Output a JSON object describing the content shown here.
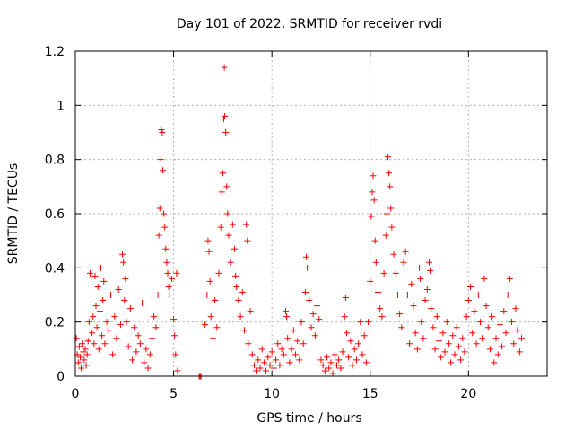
{
  "chart_data": {
    "type": "scatter",
    "title": "Day 101 of 2022, SRMTID for receiver rvdi",
    "xlabel": "GPS time / hours",
    "ylabel": "SRMTID / TECUs",
    "xlim": [
      0,
      24
    ],
    "ylim": [
      0,
      1.2
    ],
    "xticks": [
      0,
      5,
      10,
      15,
      20
    ],
    "xtick_labels": [
      "0",
      "5",
      "10",
      "15",
      "20"
    ],
    "yticks": [
      0,
      0.2,
      0.4,
      0.6,
      0.8,
      1.0,
      1.2
    ],
    "ytick_labels": [
      "0",
      "0.2",
      "0.4",
      "0.6",
      "0.8",
      "1",
      "1.2"
    ],
    "grid": true,
    "marker": "+",
    "color": "#ff0000",
    "series": [
      {
        "name": "SRMTID",
        "points": [
          [
            0.05,
            0.14
          ],
          [
            0.1,
            0.08
          ],
          [
            0.15,
            0.05
          ],
          [
            0.2,
            0.11
          ],
          [
            0.25,
            0.07
          ],
          [
            0.3,
            0.03
          ],
          [
            0.35,
            0.12
          ],
          [
            0.4,
            0.09
          ],
          [
            0.45,
            0.06
          ],
          [
            0.5,
            0.1
          ],
          [
            0.55,
            0.04
          ],
          [
            0.6,
            0.08
          ],
          [
            0.65,
            0.13
          ],
          [
            0.7,
            0.2
          ],
          [
            0.75,
            0.38
          ],
          [
            0.8,
            0.3
          ],
          [
            0.85,
            0.16
          ],
          [
            0.9,
            0.22
          ],
          [
            0.95,
            0.12
          ],
          [
            1.0,
            0.37
          ],
          [
            1.05,
            0.26
          ],
          [
            1.1,
            0.18
          ],
          [
            1.15,
            0.33
          ],
          [
            1.2,
            0.1
          ],
          [
            1.25,
            0.24
          ],
          [
            1.3,
            0.4
          ],
          [
            1.35,
            0.15
          ],
          [
            1.4,
            0.28
          ],
          [
            1.45,
            0.35
          ],
          [
            1.5,
            0.12
          ],
          [
            1.6,
            0.2
          ],
          [
            1.7,
            0.17
          ],
          [
            1.8,
            0.3
          ],
          [
            1.9,
            0.08
          ],
          [
            2.0,
            0.22
          ],
          [
            2.1,
            0.14
          ],
          [
            2.2,
            0.32
          ],
          [
            2.3,
            0.19
          ],
          [
            2.4,
            0.45
          ],
          [
            2.45,
            0.42
          ],
          [
            2.5,
            0.28
          ],
          [
            2.55,
            0.36
          ],
          [
            2.6,
            0.2
          ],
          [
            2.7,
            0.11
          ],
          [
            2.8,
            0.25
          ],
          [
            2.9,
            0.06
          ],
          [
            3.0,
            0.18
          ],
          [
            3.1,
            0.09
          ],
          [
            3.2,
            0.15
          ],
          [
            3.3,
            0.12
          ],
          [
            3.4,
            0.27
          ],
          [
            3.5,
            0.05
          ],
          [
            3.6,
            0.1
          ],
          [
            3.7,
            0.03
          ],
          [
            3.8,
            0.08
          ],
          [
            3.9,
            0.14
          ],
          [
            4.0,
            0.22
          ],
          [
            4.1,
            0.18
          ],
          [
            4.2,
            0.3
          ],
          [
            4.25,
            0.52
          ],
          [
            4.3,
            0.62
          ],
          [
            4.35,
            0.8
          ],
          [
            4.38,
            0.91
          ],
          [
            4.42,
            0.9
          ],
          [
            4.45,
            0.76
          ],
          [
            4.5,
            0.6
          ],
          [
            4.55,
            0.55
          ],
          [
            4.6,
            0.47
          ],
          [
            4.65,
            0.42
          ],
          [
            4.7,
            0.38
          ],
          [
            4.75,
            0.33
          ],
          [
            4.8,
            0.3
          ],
          [
            4.9,
            0.36
          ],
          [
            5.0,
            0.21
          ],
          [
            5.05,
            0.15
          ],
          [
            5.1,
            0.08
          ],
          [
            5.15,
            0.38
          ],
          [
            5.2,
            0.02
          ],
          [
            6.3,
            0.0
          ],
          [
            6.35,
            0.0
          ],
          [
            6.4,
            0.0
          ],
          [
            6.6,
            0.19
          ],
          [
            6.7,
            0.3
          ],
          [
            6.75,
            0.5
          ],
          [
            6.8,
            0.46
          ],
          [
            6.85,
            0.35
          ],
          [
            6.9,
            0.22
          ],
          [
            7.0,
            0.14
          ],
          [
            7.1,
            0.28
          ],
          [
            7.2,
            0.18
          ],
          [
            7.3,
            0.38
          ],
          [
            7.4,
            0.55
          ],
          [
            7.45,
            0.68
          ],
          [
            7.5,
            0.75
          ],
          [
            7.55,
            0.95
          ],
          [
            7.58,
            1.14
          ],
          [
            7.6,
            0.96
          ],
          [
            7.65,
            0.9
          ],
          [
            7.7,
            0.7
          ],
          [
            7.75,
            0.6
          ],
          [
            7.8,
            0.52
          ],
          [
            7.9,
            0.42
          ],
          [
            8.0,
            0.56
          ],
          [
            8.1,
            0.47
          ],
          [
            8.15,
            0.37
          ],
          [
            8.2,
            0.33
          ],
          [
            8.3,
            0.28
          ],
          [
            8.4,
            0.22
          ],
          [
            8.5,
            0.31
          ],
          [
            8.6,
            0.17
          ],
          [
            8.7,
            0.56
          ],
          [
            8.75,
            0.5
          ],
          [
            8.8,
            0.12
          ],
          [
            8.9,
            0.24
          ],
          [
            9.0,
            0.08
          ],
          [
            9.1,
            0.04
          ],
          [
            9.2,
            0.02
          ],
          [
            9.3,
            0.06
          ],
          [
            9.4,
            0.03
          ],
          [
            9.5,
            0.1
          ],
          [
            9.6,
            0.05
          ],
          [
            9.7,
            0.02
          ],
          [
            9.8,
            0.07
          ],
          [
            9.9,
            0.04
          ],
          [
            10.0,
            0.09
          ],
          [
            10.1,
            0.03
          ],
          [
            10.2,
            0.06
          ],
          [
            10.3,
            0.12
          ],
          [
            10.4,
            0.04
          ],
          [
            10.5,
            0.1
          ],
          [
            10.6,
            0.08
          ],
          [
            10.7,
            0.24
          ],
          [
            10.75,
            0.22
          ],
          [
            10.8,
            0.14
          ],
          [
            10.9,
            0.05
          ],
          [
            11.0,
            0.1
          ],
          [
            11.1,
            0.17
          ],
          [
            11.2,
            0.08
          ],
          [
            11.3,
            0.13
          ],
          [
            11.4,
            0.06
          ],
          [
            11.5,
            0.2
          ],
          [
            11.6,
            0.12
          ],
          [
            11.7,
            0.31
          ],
          [
            11.75,
            0.44
          ],
          [
            11.8,
            0.4
          ],
          [
            11.9,
            0.28
          ],
          [
            12.0,
            0.18
          ],
          [
            12.1,
            0.23
          ],
          [
            12.2,
            0.15
          ],
          [
            12.3,
            0.26
          ],
          [
            12.4,
            0.21
          ],
          [
            12.5,
            0.06
          ],
          [
            12.6,
            0.04
          ],
          [
            12.7,
            0.02
          ],
          [
            12.8,
            0.07
          ],
          [
            12.9,
            0.03
          ],
          [
            13.0,
            0.05
          ],
          [
            13.1,
            0.01
          ],
          [
            13.2,
            0.08
          ],
          [
            13.3,
            0.04
          ],
          [
            13.4,
            0.06
          ],
          [
            13.5,
            0.03
          ],
          [
            13.6,
            0.09
          ],
          [
            13.7,
            0.22
          ],
          [
            13.75,
            0.29
          ],
          [
            13.8,
            0.16
          ],
          [
            13.9,
            0.07
          ],
          [
            14.0,
            0.13
          ],
          [
            14.1,
            0.04
          ],
          [
            14.2,
            0.1
          ],
          [
            14.3,
            0.06
          ],
          [
            14.4,
            0.12
          ],
          [
            14.5,
            0.2
          ],
          [
            14.6,
            0.08
          ],
          [
            14.7,
            0.15
          ],
          [
            14.8,
            0.05
          ],
          [
            14.9,
            0.2
          ],
          [
            15.0,
            0.35
          ],
          [
            15.05,
            0.59
          ],
          [
            15.1,
            0.68
          ],
          [
            15.15,
            0.74
          ],
          [
            15.2,
            0.65
          ],
          [
            15.25,
            0.5
          ],
          [
            15.3,
            0.42
          ],
          [
            15.4,
            0.31
          ],
          [
            15.5,
            0.25
          ],
          [
            15.6,
            0.22
          ],
          [
            15.7,
            0.38
          ],
          [
            15.8,
            0.52
          ],
          [
            15.85,
            0.6
          ],
          [
            15.9,
            0.81
          ],
          [
            15.95,
            0.75
          ],
          [
            16.0,
            0.7
          ],
          [
            16.05,
            0.62
          ],
          [
            16.1,
            0.55
          ],
          [
            16.2,
            0.45
          ],
          [
            16.3,
            0.38
          ],
          [
            16.4,
            0.3
          ],
          [
            16.5,
            0.23
          ],
          [
            16.6,
            0.18
          ],
          [
            16.7,
            0.42
          ],
          [
            16.8,
            0.46
          ],
          [
            16.9,
            0.3
          ],
          [
            17.0,
            0.12
          ],
          [
            17.1,
            0.34
          ],
          [
            17.2,
            0.26
          ],
          [
            17.3,
            0.16
          ],
          [
            17.4,
            0.1
          ],
          [
            17.5,
            0.4
          ],
          [
            17.55,
            0.36
          ],
          [
            17.6,
            0.2
          ],
          [
            17.7,
            0.14
          ],
          [
            17.8,
            0.28
          ],
          [
            17.9,
            0.32
          ],
          [
            18.0,
            0.42
          ],
          [
            18.05,
            0.39
          ],
          [
            18.1,
            0.25
          ],
          [
            18.2,
            0.18
          ],
          [
            18.3,
            0.1
          ],
          [
            18.4,
            0.22
          ],
          [
            18.5,
            0.13
          ],
          [
            18.6,
            0.07
          ],
          [
            18.7,
            0.16
          ],
          [
            18.8,
            0.09
          ],
          [
            18.9,
            0.2
          ],
          [
            19.0,
            0.12
          ],
          [
            19.1,
            0.05
          ],
          [
            19.2,
            0.15
          ],
          [
            19.3,
            0.08
          ],
          [
            19.4,
            0.18
          ],
          [
            19.5,
            0.11
          ],
          [
            19.6,
            0.06
          ],
          [
            19.7,
            0.14
          ],
          [
            19.8,
            0.09
          ],
          [
            19.9,
            0.22
          ],
          [
            20.0,
            0.28
          ],
          [
            20.1,
            0.33
          ],
          [
            20.2,
            0.16
          ],
          [
            20.3,
            0.24
          ],
          [
            20.4,
            0.12
          ],
          [
            20.5,
            0.3
          ],
          [
            20.6,
            0.2
          ],
          [
            20.7,
            0.14
          ],
          [
            20.8,
            0.36
          ],
          [
            20.9,
            0.26
          ],
          [
            21.0,
            0.18
          ],
          [
            21.1,
            0.1
          ],
          [
            21.2,
            0.22
          ],
          [
            21.3,
            0.05
          ],
          [
            21.4,
            0.14
          ],
          [
            21.5,
            0.08
          ],
          [
            21.6,
            0.19
          ],
          [
            21.7,
            0.11
          ],
          [
            21.8,
            0.24
          ],
          [
            21.9,
            0.16
          ],
          [
            22.0,
            0.3
          ],
          [
            22.1,
            0.36
          ],
          [
            22.2,
            0.2
          ],
          [
            22.3,
            0.12
          ],
          [
            22.4,
            0.25
          ],
          [
            22.5,
            0.17
          ],
          [
            22.6,
            0.09
          ],
          [
            22.7,
            0.14
          ]
        ]
      }
    ]
  }
}
